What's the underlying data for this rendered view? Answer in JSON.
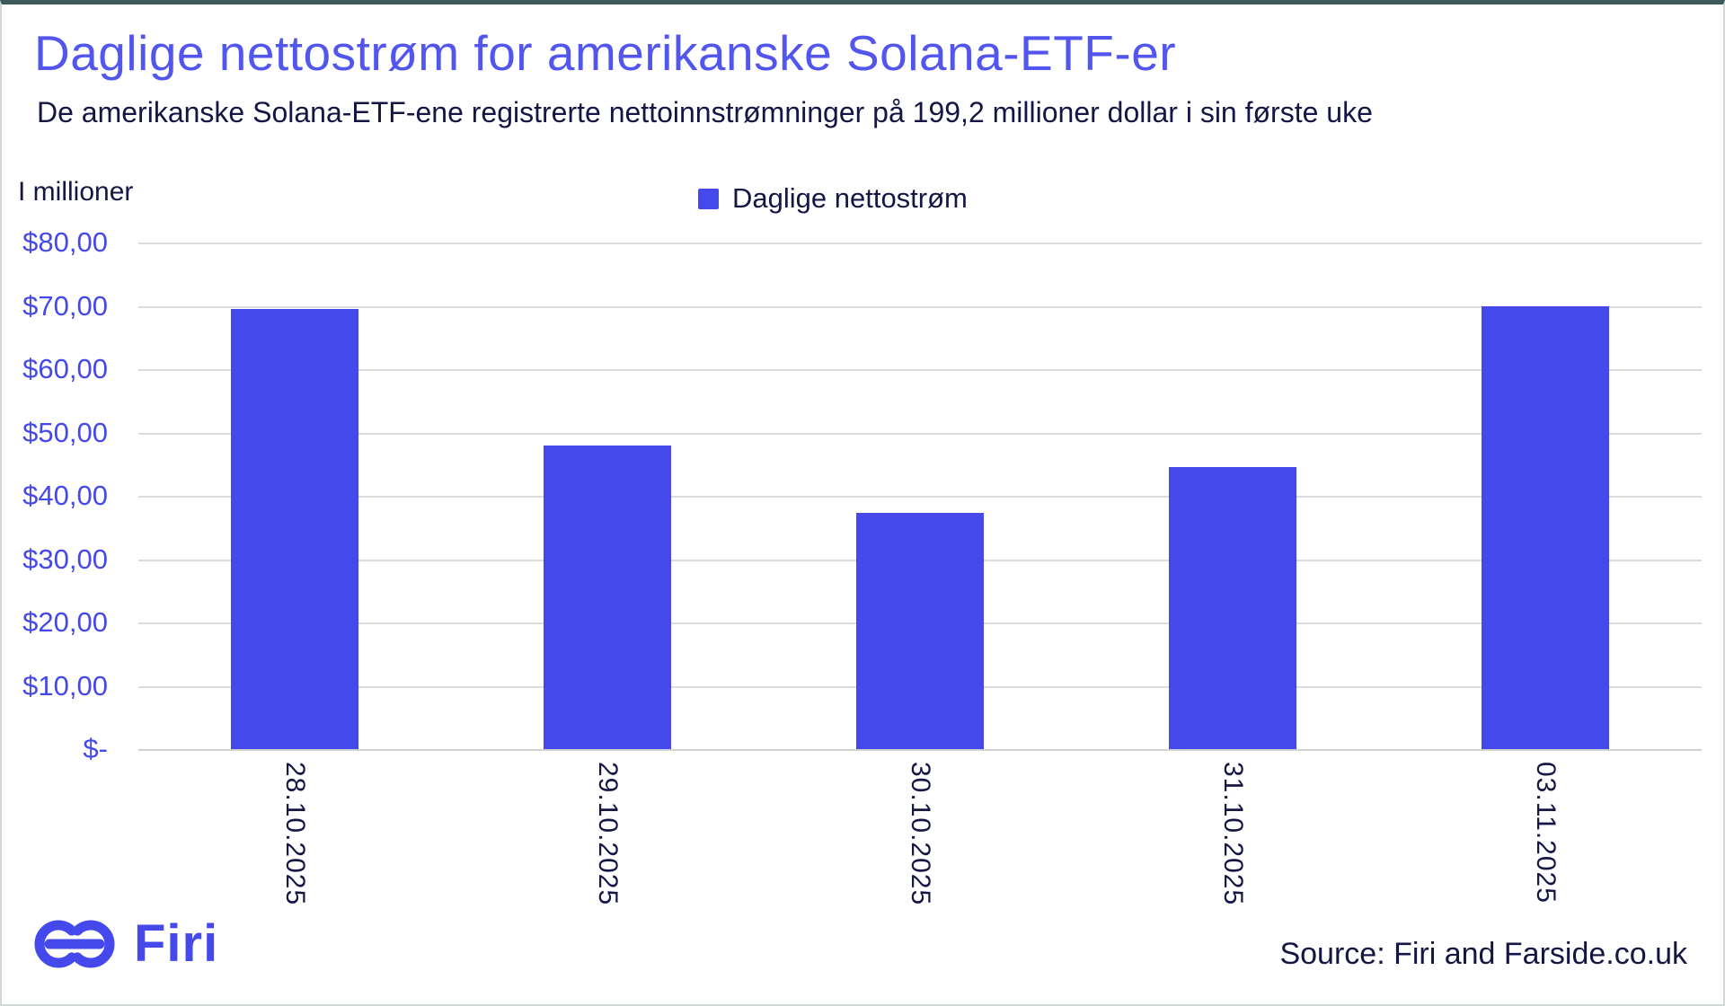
{
  "title": "Daglige nettostrøm for amerikanske Solana-ETF-er",
  "subtitle": "De amerikanske Solana-ETF-ene registrerte nettoinnstrømninger på 199,2 millioner dollar i sin første uke",
  "axis_note": "I millioner",
  "legend": {
    "label": "Daglige nettostrøm"
  },
  "source": "Source: Firi and Farside.co.uk",
  "brand": {
    "name": "Firi"
  },
  "colors": {
    "bar": "#4549EB",
    "title": "#5356EE",
    "text_dark": "#161644",
    "tick_label": "#4549EB",
    "gridline": "#DCDCDC",
    "frame_top": "#3D5B5C",
    "frame_side": "#CFD6D6"
  },
  "chart_data": {
    "type": "bar",
    "title": "Daglige nettostrøm for amerikanske Solana-ETF-er",
    "series_name": "Daglige nettostrøm",
    "categories": [
      "28.10.2025",
      "29.10.2025",
      "30.10.2025",
      "31.10.2025",
      "03.11.2025"
    ],
    "values": [
      69.5,
      48.0,
      37.3,
      44.5,
      70.0
    ],
    "unit": "millions USD",
    "xlabel": "",
    "ylabel": "I millioner",
    "ylim": [
      0,
      80
    ],
    "ytick_step": 10,
    "ytick_labels": [
      "$80,00",
      "$70,00",
      "$60,00",
      "$50,00",
      "$40,00",
      "$30,00",
      "$20,00",
      "$10,00",
      "$-"
    ],
    "grid": true,
    "legend_position": "top-center",
    "bar_color": "#4549EB"
  }
}
